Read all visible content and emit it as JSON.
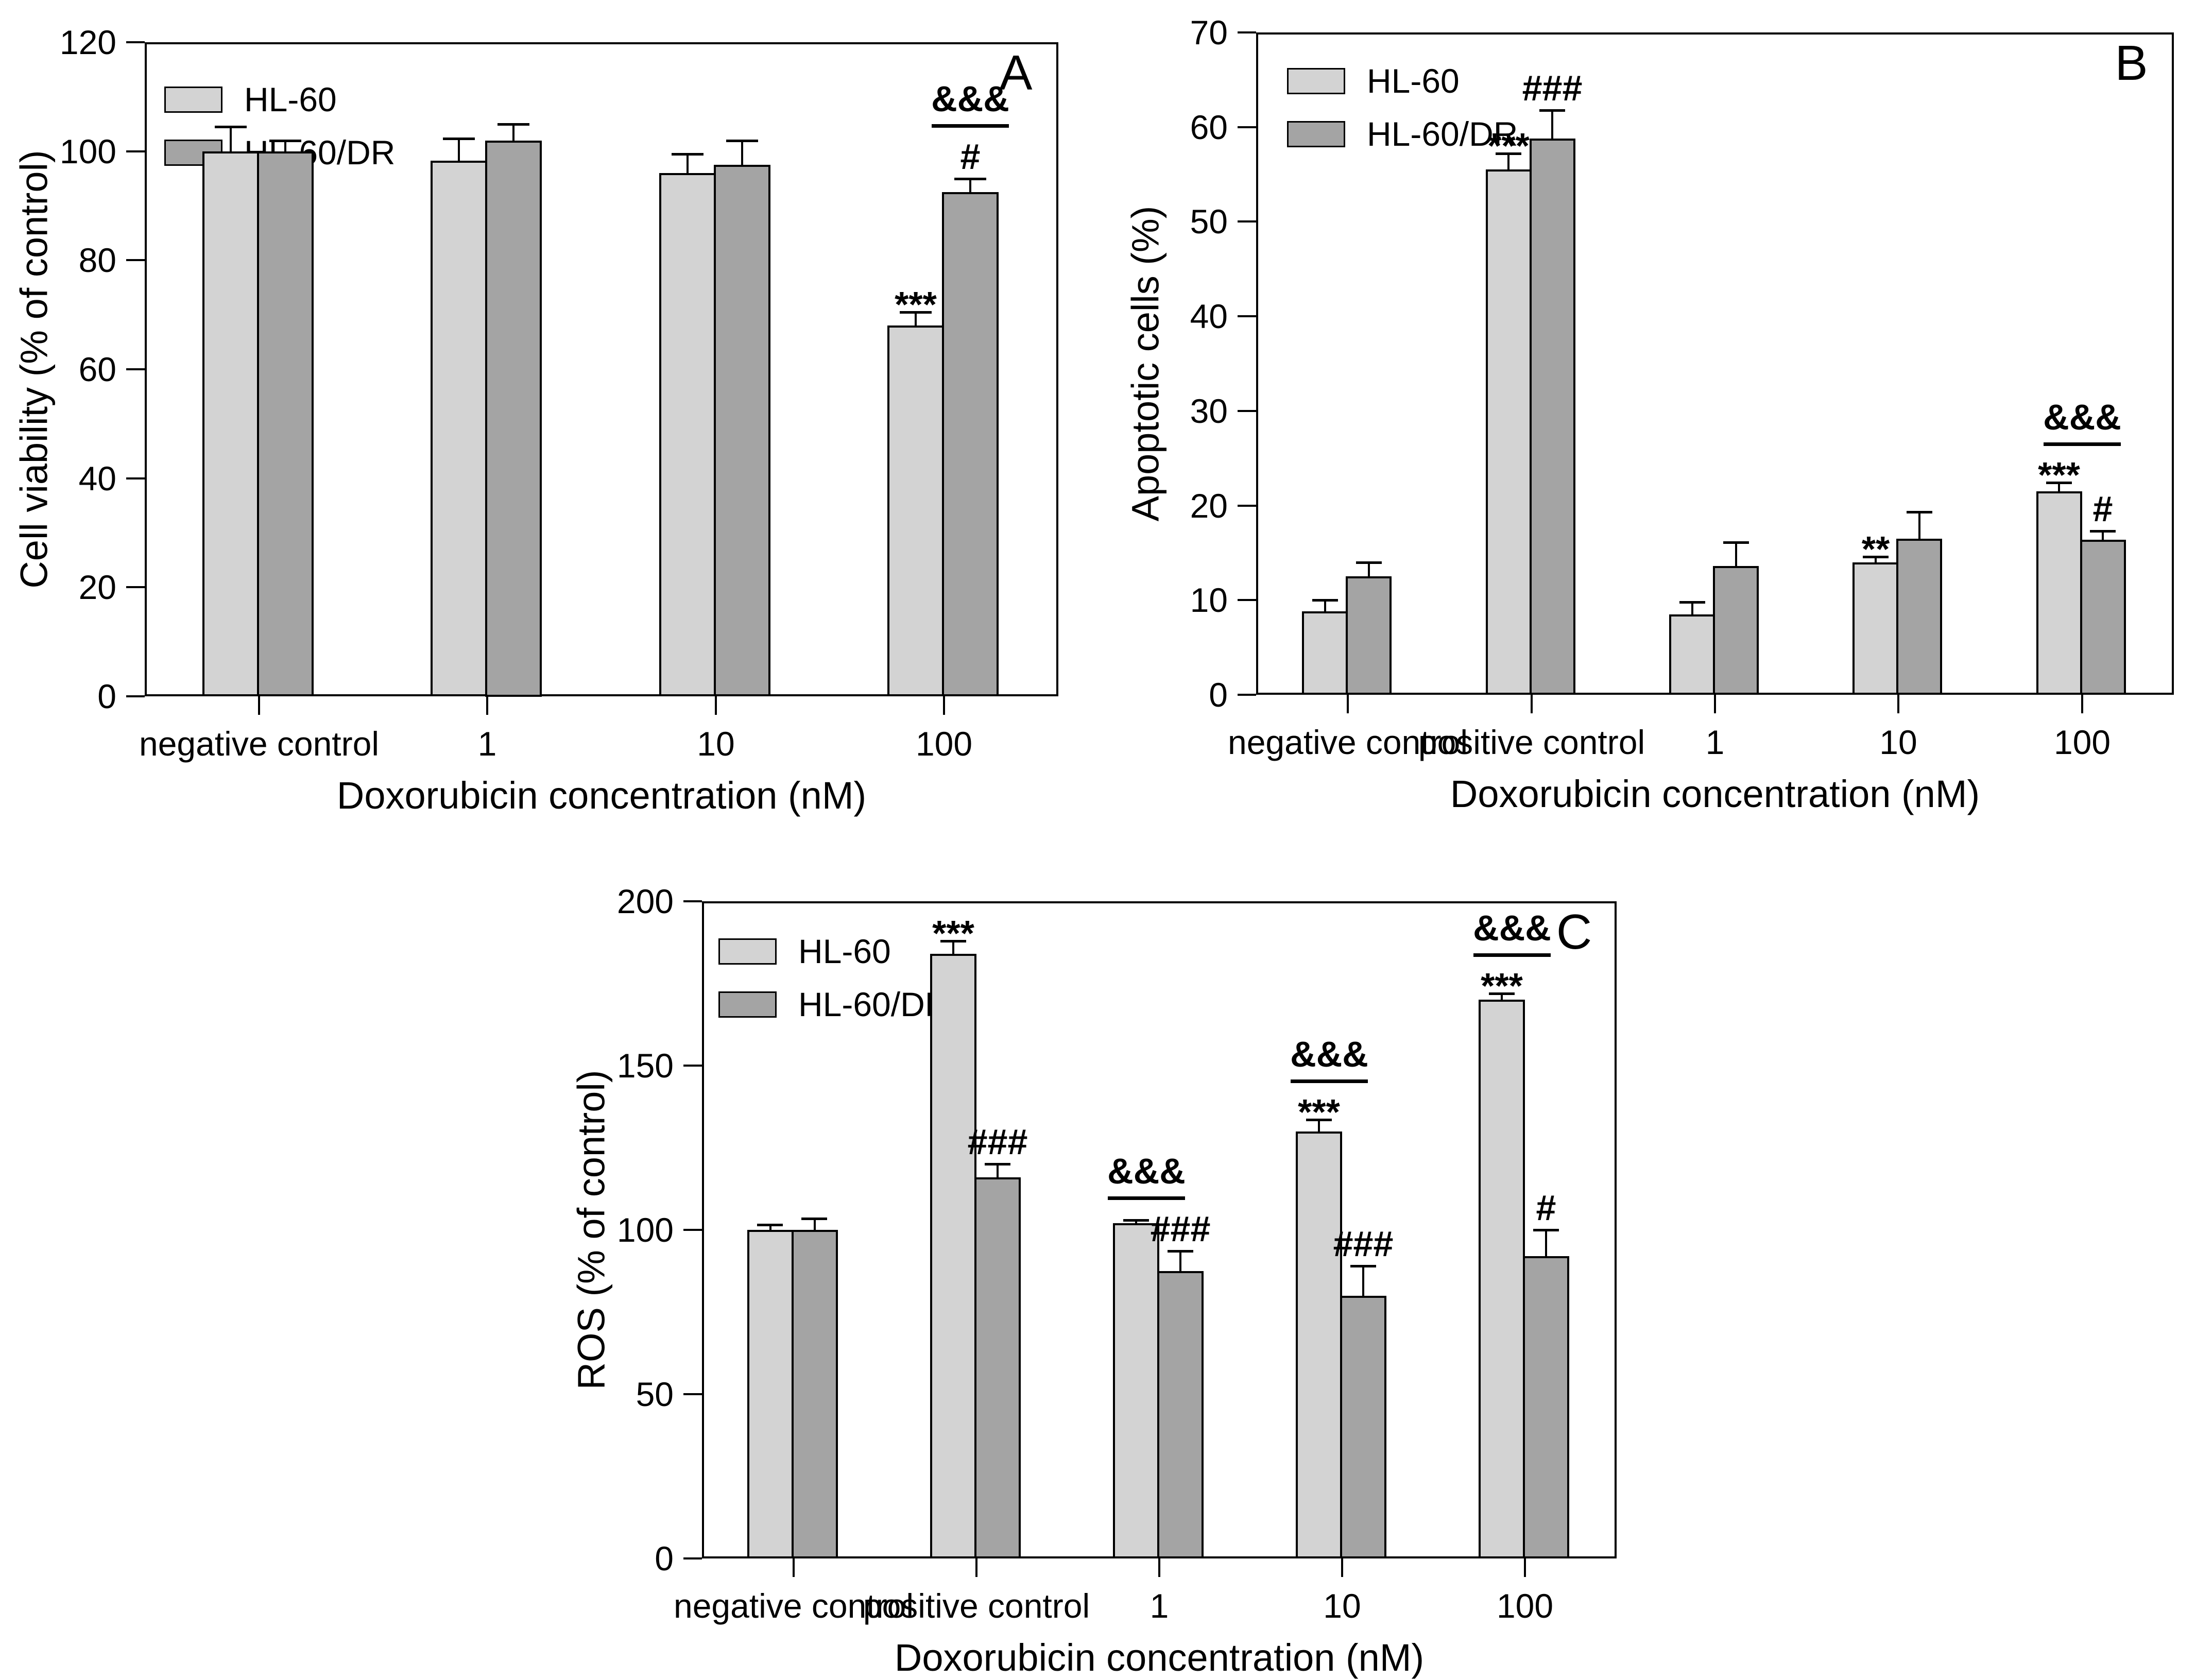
{
  "figure": {
    "background": "#ffffff",
    "series_colors": {
      "HL-60": "#d3d3d3",
      "HL-60/DR": "#a4a4a4"
    }
  },
  "chart_data": [
    {
      "type": "bar",
      "panel_label": "A",
      "ylabel": "Cell viability (% of control)",
      "xlabel": "Doxorubicin concentration (nM)",
      "ylim": [
        0,
        120
      ],
      "yticks": [
        0,
        20,
        40,
        60,
        80,
        100,
        120
      ],
      "grid": false,
      "legend_position": "top-left-inside",
      "categories": [
        "negative control",
        "1",
        "10",
        "100"
      ],
      "series": [
        {
          "name": "HL-60",
          "color": "#d3d3d3",
          "values": [
            100,
            98.3,
            96,
            68
          ],
          "errors": [
            4.5,
            4,
            3.5,
            2.5
          ]
        },
        {
          "name": "HL-60/DR",
          "color": "#a4a4a4",
          "values": [
            100,
            102,
            97.5,
            92.5
          ],
          "errors": [
            2,
            3,
            4.5,
            2.5
          ]
        }
      ],
      "annotations": [
        {
          "group": 3,
          "series": 0,
          "text": "***"
        },
        {
          "group": 3,
          "series": 1,
          "text": "#"
        },
        {
          "group": 3,
          "text": "&&&",
          "underline": true,
          "anchor": 1
        }
      ]
    },
    {
      "type": "bar",
      "panel_label": "B",
      "ylabel": "Apoptotic cells (%)",
      "xlabel": "Doxorubicin concentration (nM)",
      "ylim": [
        0,
        70
      ],
      "yticks": [
        0,
        10,
        20,
        30,
        40,
        50,
        60,
        70
      ],
      "grid": false,
      "legend_position": "top-left-inside",
      "categories": [
        "negative control",
        "positive control",
        "1",
        "10",
        "100"
      ],
      "series": [
        {
          "name": "HL-60",
          "color": "#d3d3d3",
          "values": [
            8.8,
            55.5,
            8.5,
            14,
            21.5
          ],
          "errors": [
            1.2,
            1.7,
            1.3,
            0.6,
            0.9
          ]
        },
        {
          "name": "HL-60/DR",
          "color": "#a4a4a4",
          "values": [
            12.5,
            58.8,
            13.6,
            16.5,
            16.4
          ],
          "errors": [
            1.5,
            3,
            2.5,
            2.8,
            0.9
          ]
        }
      ],
      "annotations": [
        {
          "group": 1,
          "series": 0,
          "text": "***"
        },
        {
          "group": 1,
          "series": 1,
          "text": "###"
        },
        {
          "group": 3,
          "series": 0,
          "text": "**"
        },
        {
          "group": 4,
          "series": 0,
          "text": "***"
        },
        {
          "group": 4,
          "series": 1,
          "text": "#"
        },
        {
          "group": 4,
          "text": "&&&",
          "underline": true,
          "anchor": "center"
        }
      ]
    },
    {
      "type": "bar",
      "panel_label": "C",
      "ylabel": "ROS (% of control)",
      "xlabel": "Doxorubicin concentration (nM)",
      "ylim": [
        0,
        200
      ],
      "yticks": [
        0,
        50,
        100,
        150,
        200
      ],
      "grid": false,
      "legend_position": "top-left-inside",
      "categories": [
        "negative control",
        "positive control",
        "1",
        "10",
        "100"
      ],
      "series": [
        {
          "name": "HL-60",
          "color": "#d3d3d3",
          "values": [
            100,
            184,
            102,
            130,
            170
          ],
          "errors": [
            1.5,
            4,
            1,
            3.5,
            2
          ]
        },
        {
          "name": "HL-60/DR",
          "color": "#a4a4a4",
          "values": [
            100,
            116,
            87.5,
            80,
            92
          ],
          "errors": [
            3.5,
            4,
            6,
            9,
            8
          ]
        }
      ],
      "annotations": [
        {
          "group": 1,
          "series": 0,
          "text": "***"
        },
        {
          "group": 1,
          "series": 1,
          "text": "###"
        },
        {
          "group": 2,
          "series": 1,
          "text": "###"
        },
        {
          "group": 2,
          "text": "&&&",
          "underline": true,
          "anchor": 0
        },
        {
          "group": 3,
          "series": 0,
          "text": "***"
        },
        {
          "group": 3,
          "series": 1,
          "text": "###"
        },
        {
          "group": 3,
          "text": "&&&",
          "underline": true,
          "anchor": 0
        },
        {
          "group": 4,
          "series": 0,
          "text": "***"
        },
        {
          "group": 4,
          "series": 1,
          "text": "#"
        },
        {
          "group": 4,
          "text": "&&&",
          "underline": true,
          "anchor": 0
        }
      ]
    }
  ]
}
